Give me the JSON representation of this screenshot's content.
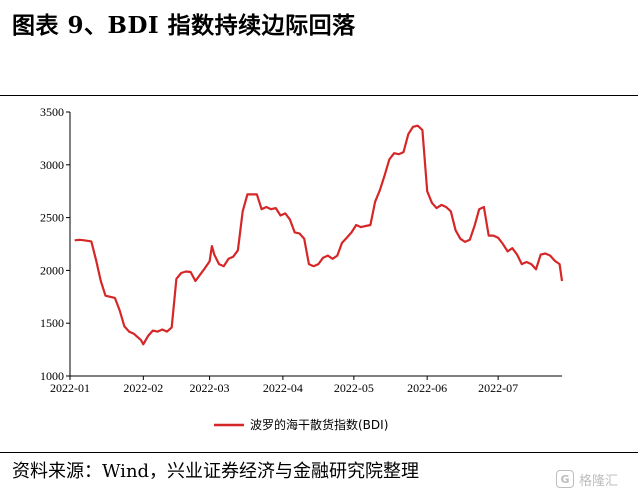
{
  "title": "图表 9、BDI 指数持续边际回落",
  "source": "资料来源：Wind，兴业证券经济与金融研究院整理",
  "watermark": {
    "text": "格隆汇",
    "logo_letter": "G",
    "icon": "gelonghui-logo-icon"
  },
  "colors": {
    "line": "#d62728",
    "axis": "#000000"
  },
  "chart_data": {
    "type": "line",
    "title": "",
    "xlabel": "",
    "ylabel": "",
    "x_range": [
      "2022-01-01",
      "2022-07-28"
    ],
    "ylim": [
      1000,
      3500
    ],
    "yticks": [
      1000,
      1500,
      2000,
      2500,
      3000,
      3500
    ],
    "xticks": [
      "2022-01",
      "2022-02",
      "2022-03",
      "2022-04",
      "2022-05",
      "2022-06",
      "2022-07"
    ],
    "grid": false,
    "legend_position": "bottom",
    "series": [
      {
        "name": "波罗的海干散货指数(BDI)",
        "points": [
          [
            "2022-01-03",
            2285
          ],
          [
            "2022-01-05",
            2290
          ],
          [
            "2022-01-07",
            2285
          ],
          [
            "2022-01-10",
            2275
          ],
          [
            "2022-01-12",
            2100
          ],
          [
            "2022-01-14",
            1900
          ],
          [
            "2022-01-16",
            1760
          ],
          [
            "2022-01-18",
            1750
          ],
          [
            "2022-01-20",
            1740
          ],
          [
            "2022-01-22",
            1620
          ],
          [
            "2022-01-24",
            1470
          ],
          [
            "2022-01-26",
            1420
          ],
          [
            "2022-01-28",
            1400
          ],
          [
            "2022-01-31",
            1340
          ],
          [
            "2022-02-01",
            1300
          ],
          [
            "2022-02-03",
            1380
          ],
          [
            "2022-02-05",
            1430
          ],
          [
            "2022-02-07",
            1420
          ],
          [
            "2022-02-09",
            1440
          ],
          [
            "2022-02-11",
            1420
          ],
          [
            "2022-02-13",
            1460
          ],
          [
            "2022-02-15",
            1920
          ],
          [
            "2022-02-17",
            1975
          ],
          [
            "2022-02-19",
            1990
          ],
          [
            "2022-02-21",
            1985
          ],
          [
            "2022-02-23",
            1900
          ],
          [
            "2022-02-25",
            1960
          ],
          [
            "2022-02-27",
            2020
          ],
          [
            "2022-03-01",
            2085
          ],
          [
            "2022-03-02",
            2230
          ],
          [
            "2022-03-03",
            2150
          ],
          [
            "2022-03-05",
            2060
          ],
          [
            "2022-03-07",
            2040
          ],
          [
            "2022-03-09",
            2110
          ],
          [
            "2022-03-11",
            2130
          ],
          [
            "2022-03-13",
            2190
          ],
          [
            "2022-03-15",
            2560
          ],
          [
            "2022-03-17",
            2720
          ],
          [
            "2022-03-21",
            2720
          ],
          [
            "2022-03-23",
            2580
          ],
          [
            "2022-03-25",
            2600
          ],
          [
            "2022-03-27",
            2580
          ],
          [
            "2022-03-29",
            2590
          ],
          [
            "2022-03-31",
            2520
          ],
          [
            "2022-04-02",
            2540
          ],
          [
            "2022-04-04",
            2480
          ],
          [
            "2022-04-06",
            2360
          ],
          [
            "2022-04-08",
            2350
          ],
          [
            "2022-04-10",
            2300
          ],
          [
            "2022-04-12",
            2060
          ],
          [
            "2022-04-14",
            2040
          ],
          [
            "2022-04-16",
            2060
          ],
          [
            "2022-04-18",
            2120
          ],
          [
            "2022-04-20",
            2140
          ],
          [
            "2022-04-22",
            2110
          ],
          [
            "2022-04-24",
            2140
          ],
          [
            "2022-04-26",
            2260
          ],
          [
            "2022-04-28",
            2310
          ],
          [
            "2022-04-30",
            2360
          ],
          [
            "2022-05-02",
            2430
          ],
          [
            "2022-05-04",
            2410
          ],
          [
            "2022-05-06",
            2420
          ],
          [
            "2022-05-08",
            2430
          ],
          [
            "2022-05-10",
            2650
          ],
          [
            "2022-05-12",
            2760
          ],
          [
            "2022-05-14",
            2900
          ],
          [
            "2022-05-16",
            3050
          ],
          [
            "2022-05-18",
            3110
          ],
          [
            "2022-05-20",
            3100
          ],
          [
            "2022-05-22",
            3120
          ],
          [
            "2022-05-24",
            3290
          ],
          [
            "2022-05-26",
            3360
          ],
          [
            "2022-05-28",
            3370
          ],
          [
            "2022-05-30",
            3330
          ],
          [
            "2022-06-01",
            2750
          ],
          [
            "2022-06-03",
            2640
          ],
          [
            "2022-06-05",
            2590
          ],
          [
            "2022-06-07",
            2620
          ],
          [
            "2022-06-09",
            2600
          ],
          [
            "2022-06-11",
            2560
          ],
          [
            "2022-06-13",
            2380
          ],
          [
            "2022-06-15",
            2300
          ],
          [
            "2022-06-17",
            2270
          ],
          [
            "2022-06-19",
            2290
          ],
          [
            "2022-06-21",
            2420
          ],
          [
            "2022-06-23",
            2580
          ],
          [
            "2022-06-25",
            2600
          ],
          [
            "2022-06-27",
            2330
          ],
          [
            "2022-06-29",
            2330
          ],
          [
            "2022-07-01",
            2310
          ],
          [
            "2022-07-03",
            2250
          ],
          [
            "2022-07-05",
            2180
          ],
          [
            "2022-07-07",
            2210
          ],
          [
            "2022-07-09",
            2150
          ],
          [
            "2022-07-11",
            2060
          ],
          [
            "2022-07-13",
            2080
          ],
          [
            "2022-07-15",
            2060
          ],
          [
            "2022-07-17",
            2010
          ],
          [
            "2022-07-19",
            2150
          ],
          [
            "2022-07-21",
            2160
          ],
          [
            "2022-07-23",
            2140
          ],
          [
            "2022-07-25",
            2090
          ],
          [
            "2022-07-27",
            2060
          ],
          [
            "2022-07-28",
            1900
          ]
        ]
      }
    ]
  }
}
